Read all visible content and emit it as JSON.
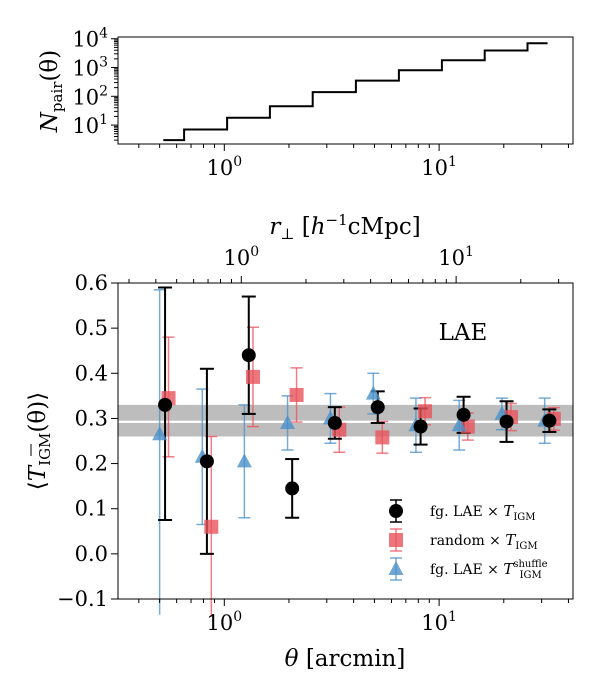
{
  "chart_data": [
    {
      "type": "line",
      "step": true,
      "ylabel": "N_pair(θ)",
      "xscale": "log",
      "yscale": "log",
      "xlim": [
        0.32,
        42
      ],
      "ylim": [
        2.2,
        11500
      ],
      "x_tick_labels": [
        {
          "value": 1,
          "base": "10",
          "exp": "0"
        },
        {
          "value": 10,
          "base": "10",
          "exp": "1"
        }
      ],
      "y_tick_labels": [
        {
          "value": 10,
          "base": "10",
          "exp": "1"
        },
        {
          "value": 100,
          "base": "10",
          "exp": "2"
        },
        {
          "value": 1000,
          "base": "10",
          "exp": "3"
        },
        {
          "value": 10000,
          "base": "10",
          "exp": "4"
        }
      ],
      "edges": [
        0.52,
        0.65,
        1.03,
        1.63,
        2.58,
        4.1,
        6.5,
        10.3,
        16.3,
        25.8,
        32
      ],
      "counts": [
        3,
        7,
        18,
        45,
        140,
        350,
        800,
        1800,
        3900,
        7000
      ]
    },
    {
      "type": "scatter",
      "xlabel": "θ [arcmin]",
      "ylabel": "⟨T̄_IGM(θ)⟩",
      "top_xlabel": "r⊥ [h⁻¹cMpc]",
      "annotation": "LAE",
      "xscale": "log",
      "xlim": [
        0.32,
        42
      ],
      "ylim": [
        -0.1,
        0.6
      ],
      "y_ticks": [
        "-0.1",
        "0.0",
        "0.1",
        "0.2",
        "0.3",
        "0.4",
        "0.5",
        "0.6"
      ],
      "x_tick_labels": [
        {
          "value": 1,
          "base": "10",
          "exp": "0"
        },
        {
          "value": 10,
          "base": "10",
          "exp": "1"
        }
      ],
      "top_axis": {
        "arcmin_per_unit": 1.2,
        "tick_labels": [
          {
            "value": 1,
            "base": "10",
            "exp": "0"
          },
          {
            "value": 10,
            "base": "10",
            "exp": "1"
          }
        ]
      },
      "bands": [
        [
          0.26,
          0.29
        ],
        [
          0.295,
          0.33
        ]
      ],
      "legend_position": "lower-right",
      "series": [
        {
          "name": "fg. LAE × T_IGM",
          "marker": "circle",
          "color": "#000000",
          "points": [
            {
              "x": 0.53,
              "y": 0.33,
              "err_low": 0.255,
              "err_high": 0.26
            },
            {
              "x": 0.83,
              "y": 0.205,
              "err_low": 0.205,
              "err_high": 0.205
            },
            {
              "x": 1.3,
              "y": 0.44,
              "err_low": 0.13,
              "err_high": 0.13
            },
            {
              "x": 2.07,
              "y": 0.145,
              "err_low": 0.065,
              "err_high": 0.065
            },
            {
              "x": 3.27,
              "y": 0.29,
              "err_low": 0.035,
              "err_high": 0.035
            },
            {
              "x": 5.18,
              "y": 0.325,
              "err_low": 0.035,
              "err_high": 0.035
            },
            {
              "x": 8.2,
              "y": 0.282,
              "err_low": 0.04,
              "err_high": 0.04
            },
            {
              "x": 13.0,
              "y": 0.308,
              "err_low": 0.04,
              "err_high": 0.04
            },
            {
              "x": 20.6,
              "y": 0.293,
              "err_low": 0.045,
              "err_high": 0.045
            },
            {
              "x": 32.6,
              "y": 0.295,
              "err_low": 0.025,
              "err_high": 0.025
            }
          ]
        },
        {
          "name": "random × T_IGM",
          "marker": "square",
          "color": "#e8535b",
          "points": [
            {
              "x": 0.55,
              "y": 0.345,
              "err_low": 0.13,
              "err_high": 0.135
            },
            {
              "x": 0.87,
              "y": 0.06,
              "err_low": 0.2,
              "err_high": 0.2
            },
            {
              "x": 1.36,
              "y": 0.392,
              "err_low": 0.11,
              "err_high": 0.11
            },
            {
              "x": 2.17,
              "y": 0.352,
              "err_low": 0.06,
              "err_high": 0.06
            },
            {
              "x": 3.43,
              "y": 0.275,
              "err_low": 0.05,
              "err_high": 0.05
            },
            {
              "x": 5.44,
              "y": 0.258,
              "err_low": 0.035,
              "err_high": 0.035
            },
            {
              "x": 8.6,
              "y": 0.316,
              "err_low": 0.03,
              "err_high": 0.03
            },
            {
              "x": 13.6,
              "y": 0.282,
              "err_low": 0.03,
              "err_high": 0.03
            },
            {
              "x": 21.6,
              "y": 0.303,
              "err_low": 0.03,
              "err_high": 0.03
            },
            {
              "x": 34.2,
              "y": 0.299,
              "err_low": 0.025,
              "err_high": 0.025
            }
          ]
        },
        {
          "name": "fg. LAE × T_IGM^shuffle",
          "marker": "triangle",
          "color": "#4a90c9",
          "points": [
            {
              "x": 0.5,
              "y": 0.265,
              "err_low": 0.4,
              "err_high": 0.32
            },
            {
              "x": 0.79,
              "y": 0.215,
              "err_low": 0.15,
              "err_high": 0.15
            },
            {
              "x": 1.24,
              "y": 0.205,
              "err_low": 0.125,
              "err_high": 0.125
            },
            {
              "x": 1.97,
              "y": 0.29,
              "err_low": 0.06,
              "err_high": 0.06
            },
            {
              "x": 3.12,
              "y": 0.3,
              "err_low": 0.055,
              "err_high": 0.055
            },
            {
              "x": 4.94,
              "y": 0.355,
              "err_low": 0.045,
              "err_high": 0.045
            },
            {
              "x": 7.8,
              "y": 0.285,
              "err_low": 0.06,
              "err_high": 0.06
            },
            {
              "x": 12.4,
              "y": 0.285,
              "err_low": 0.055,
              "err_high": 0.055
            },
            {
              "x": 19.6,
              "y": 0.31,
              "err_low": 0.035,
              "err_high": 0.035
            },
            {
              "x": 31.0,
              "y": 0.295,
              "err_low": 0.05,
              "err_high": 0.05
            }
          ]
        }
      ]
    }
  ],
  "labels": {
    "top_ylabel": {
      "N": "N",
      "sub": "pair",
      "rest": "(θ)"
    },
    "mid_xlabel": {
      "r": "r",
      "sub": "⊥",
      "open": " [",
      "h": "h",
      "sup": "−1",
      "rest": "cMpc]"
    },
    "main_ylabel": {
      "open": "⟨",
      "T": "T",
      "sub": "IGM",
      "rest": "(θ)⟩"
    },
    "main_xlabel": {
      "theta": "θ",
      "rest": " [arcmin]"
    },
    "annotation": "LAE",
    "legend": [
      {
        "pre": "fg. LAE × ",
        "T": "T",
        "sub": "IGM",
        "sup": ""
      },
      {
        "pre": "random × ",
        "T": "T",
        "sub": "IGM",
        "sup": ""
      },
      {
        "pre": "fg. LAE × ",
        "T": "T",
        "sub": "IGM",
        "sup": "shuffle"
      }
    ]
  }
}
